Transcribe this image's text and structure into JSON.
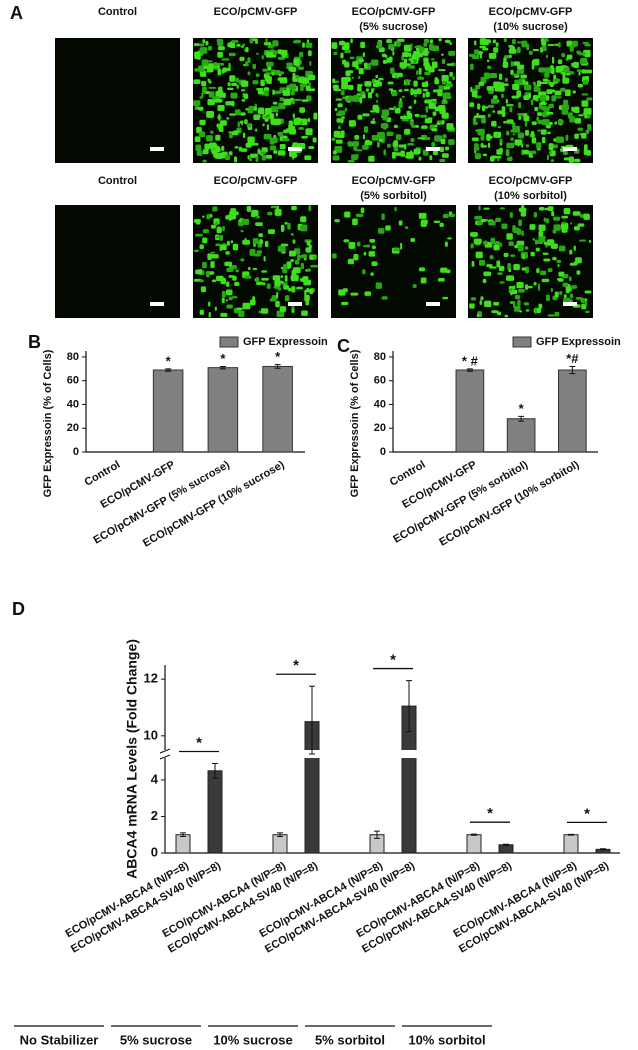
{
  "panel_labels": [
    "A",
    "B",
    "C",
    "D"
  ],
  "panel_a": {
    "rows": [
      {
        "images": [
          {
            "label": [
              "Control"
            ]
          },
          {
            "label": [
              "ECO/pCMV-GFP"
            ]
          },
          {
            "label": [
              "ECO/pCMV-GFP",
              "(5% sucrose)"
            ]
          },
          {
            "label": [
              "ECO/pCMV-GFP",
              "(10% sucrose)"
            ]
          }
        ]
      },
      {
        "images": [
          {
            "label": [
              "Control"
            ]
          },
          {
            "label": [
              "ECO/pCMV-GFP"
            ]
          },
          {
            "label": [
              "ECO/pCMV-GFP",
              "(5% sorbitol)"
            ]
          },
          {
            "label": [
              "ECO/pCMV-GFP",
              "(10% sorbitol)"
            ]
          }
        ]
      }
    ]
  },
  "chart_data": [
    {
      "type": "bar",
      "ylabel": "GFP Expressoin (% of Cells)",
      "categories": [
        "Control",
        "ECO/pCMV-GFP",
        "ECO/pCMV-GFP (5% sucrose)",
        "ECO/pCMV-GFP (10% sucrose)"
      ],
      "series": [
        {
          "name": "GFP Expressoin",
          "color": "#808080",
          "values": [
            0,
            69,
            71,
            72
          ],
          "errors": [
            0,
            1,
            1,
            1.5
          ],
          "annotations": [
            null,
            "*",
            "*",
            "*"
          ]
        }
      ],
      "ylim": [
        0,
        85
      ],
      "yticks": [
        0,
        20,
        40,
        60,
        80
      ],
      "legend": "top-right"
    },
    {
      "type": "bar",
      "ylabel": "GFP Expressoin (% of Cells)",
      "categories": [
        "Control",
        "ECO/pCMV-GFP",
        "ECO/pCMV-GFP (5% sorbitol)",
        "ECO/pCMV-GFP (10% sorbitol)"
      ],
      "series": [
        {
          "name": "GFP Expressoin",
          "color": "#808080",
          "values": [
            0,
            69,
            28,
            69
          ],
          "errors": [
            0,
            1,
            2,
            3
          ],
          "annotations": [
            null,
            "* #",
            "*",
            "*#"
          ]
        }
      ],
      "ylim": [
        0,
        85
      ],
      "yticks": [
        0,
        20,
        40,
        60,
        80
      ],
      "legend": "top-right"
    },
    {
      "type": "grouped_bar",
      "ylabel": "ABCA4 mRNA Levels (Fold Change)",
      "colors": [
        "#c8c8c8",
        "#3a3a3a"
      ],
      "groups": [
        {
          "label": "No Stabilizer",
          "categories": [
            "ECO/pCMV-ABCA4 (N/P=8)",
            "ECO/pCMV-ABCA4-SV40 (N/P=8)"
          ],
          "values": [
            1.0,
            4.5
          ],
          "errors": [
            0.1,
            0.4
          ],
          "significance": "*"
        },
        {
          "label": "5% sucrose",
          "categories": [
            "ECO/pCMV-ABCA4 (N/P=8)",
            "ECO/pCMV-ABCA4-SV40 (N/P=8)"
          ],
          "values": [
            1.0,
            10.5
          ],
          "errors": [
            0.1,
            1.25
          ],
          "significance": "*"
        },
        {
          "label": "10% sucrose",
          "categories": [
            "ECO/pCMV-ABCA4 (N/P=8)",
            "ECO/pCMV-ABCA4-SV40 (N/P=8)"
          ],
          "values": [
            1.0,
            11.05
          ],
          "errors": [
            0.2,
            0.9
          ],
          "significance": "*"
        },
        {
          "label": "5% sorbitol",
          "categories": [
            "ECO/pCMV-ABCA4 (N/P=8)",
            "ECO/pCMV-ABCA4-SV40 (N/P=8)"
          ],
          "values": [
            1.0,
            0.45
          ],
          "errors": [
            0.03,
            0.03
          ],
          "significance": "*"
        },
        {
          "label": "10% sorbitol",
          "categories": [
            "ECO/pCMV-ABCA4 (N/P=8)",
            "ECO/pCMV-ABCA4-SV40 (N/P=8)"
          ],
          "values": [
            1.0,
            0.2
          ],
          "errors": [
            0.02,
            0.03
          ],
          "significance": "*"
        }
      ],
      "ylim": [
        0,
        12.5
      ],
      "ybreak": [
        5.2,
        9.5
      ],
      "yticks": [
        0,
        2,
        4,
        10,
        12
      ]
    }
  ]
}
